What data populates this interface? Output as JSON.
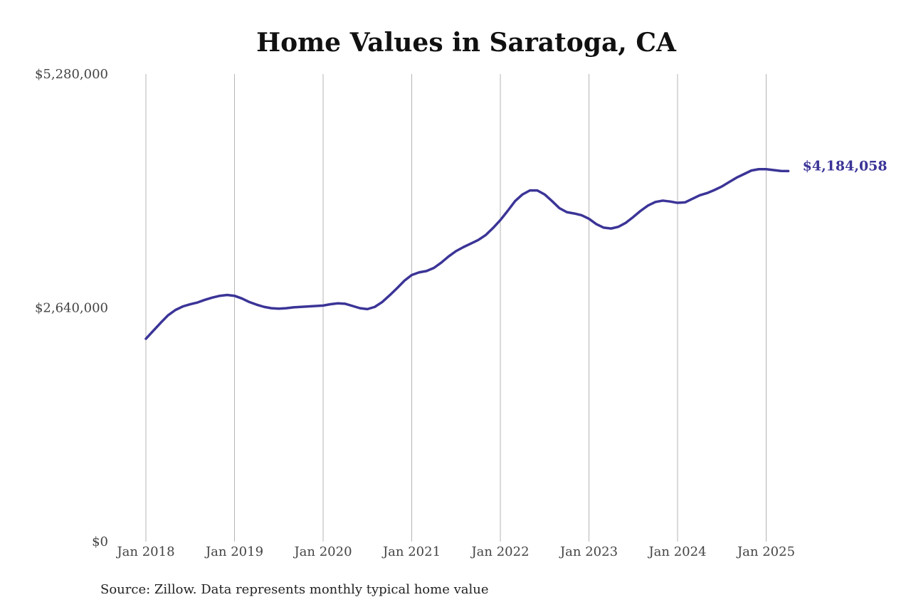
{
  "chart_data": {
    "type": "line",
    "title": "Home Values in Saratoga, CA",
    "xlabel": "",
    "ylabel": "",
    "source": "Source: Zillow. Data represents monthly typical home value",
    "ylim": [
      0,
      5280000
    ],
    "xlim": [
      "2018-01",
      "2025-04"
    ],
    "y_ticks": [
      {
        "value": 0,
        "label": "$0"
      },
      {
        "value": 2640000,
        "label": "$2,640,000"
      },
      {
        "value": 5280000,
        "label": "$5,280,000"
      }
    ],
    "x_ticks": [
      {
        "value": "2018-01",
        "label": "Jan 2018"
      },
      {
        "value": "2019-01",
        "label": "Jan 2019"
      },
      {
        "value": "2020-01",
        "label": "Jan 2020"
      },
      {
        "value": "2021-01",
        "label": "Jan 2021"
      },
      {
        "value": "2022-01",
        "label": "Jan 2022"
      },
      {
        "value": "2023-01",
        "label": "Jan 2023"
      },
      {
        "value": "2024-01",
        "label": "Jan 2024"
      },
      {
        "value": "2025-01",
        "label": "Jan 2025"
      }
    ],
    "grid": {
      "vertical": true,
      "horizontal": false
    },
    "series_color": "#3b3497",
    "end_label": "$4,184,058",
    "series": [
      {
        "dates": [
          "2018-01",
          "2018-02",
          "2018-03",
          "2018-04",
          "2018-05",
          "2018-06",
          "2018-07",
          "2018-08",
          "2018-09",
          "2018-10",
          "2018-11",
          "2018-12",
          "2019-01",
          "2019-02",
          "2019-03",
          "2019-04",
          "2019-05",
          "2019-06",
          "2019-07",
          "2019-08",
          "2019-09",
          "2019-10",
          "2019-11",
          "2019-12",
          "2020-01",
          "2020-02",
          "2020-03",
          "2020-04",
          "2020-05",
          "2020-06",
          "2020-07",
          "2020-08",
          "2020-09",
          "2020-10",
          "2020-11",
          "2020-12",
          "2021-01",
          "2021-02",
          "2021-03",
          "2021-04",
          "2021-05",
          "2021-06",
          "2021-07",
          "2021-08",
          "2021-09",
          "2021-10",
          "2021-11",
          "2021-12",
          "2022-01",
          "2022-02",
          "2022-03",
          "2022-04",
          "2022-05",
          "2022-06",
          "2022-07",
          "2022-08",
          "2022-09",
          "2022-10",
          "2022-11",
          "2022-12",
          "2023-01",
          "2023-02",
          "2023-03",
          "2023-04",
          "2023-05",
          "2023-06",
          "2023-07",
          "2023-08",
          "2023-09",
          "2023-10",
          "2023-11",
          "2023-12",
          "2024-01",
          "2024-02",
          "2024-03",
          "2024-04",
          "2024-05",
          "2024-06",
          "2024-07",
          "2024-08",
          "2024-09",
          "2024-10",
          "2024-11",
          "2024-12",
          "2025-01",
          "2025-02",
          "2025-03",
          "2025-04"
        ],
        "values": [
          2290000,
          2380000,
          2470000,
          2555000,
          2615000,
          2655000,
          2680000,
          2700000,
          2730000,
          2755000,
          2775000,
          2785000,
          2775000,
          2745000,
          2705000,
          2675000,
          2650000,
          2635000,
          2630000,
          2635000,
          2645000,
          2650000,
          2655000,
          2660000,
          2665000,
          2680000,
          2690000,
          2685000,
          2660000,
          2635000,
          2625000,
          2650000,
          2705000,
          2780000,
          2860000,
          2945000,
          3010000,
          3040000,
          3055000,
          3090000,
          3150000,
          3220000,
          3280000,
          3325000,
          3365000,
          3405000,
          3460000,
          3540000,
          3630000,
          3735000,
          3845000,
          3920000,
          3965000,
          3965000,
          3920000,
          3845000,
          3765000,
          3720000,
          3705000,
          3685000,
          3645000,
          3585000,
          3545000,
          3535000,
          3555000,
          3600000,
          3665000,
          3735000,
          3795000,
          3835000,
          3850000,
          3840000,
          3825000,
          3830000,
          3870000,
          3910000,
          3935000,
          3970000,
          4010000,
          4060000,
          4110000,
          4150000,
          4190000,
          4205000,
          4205000,
          4195000,
          4185000,
          4184058
        ]
      }
    ]
  }
}
